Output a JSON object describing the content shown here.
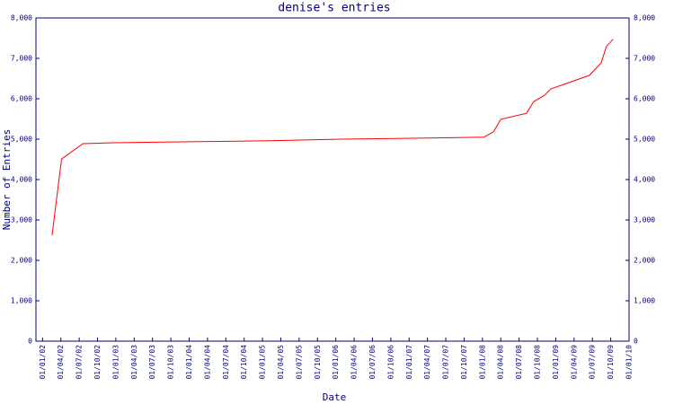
{
  "chart_data": {
    "type": "line",
    "title": "denise's entries",
    "x_label": "Date",
    "y_label": "Number of Entries",
    "series": [
      {
        "name": "entries",
        "color": "#ff0000",
        "x": [
          2002.13,
          2002.26,
          2002.55,
          2002.96,
          2003.75,
          2005.1,
          2006.09,
          2006.94,
          2007.66,
          2008.02,
          2008.15,
          2008.25,
          2008.6,
          2008.7,
          2008.85,
          2008.93,
          2009.46,
          2009.62,
          2009.69,
          2009.78
        ],
        "values": [
          2620,
          4510,
          4890,
          4910,
          4930,
          4960,
          5000,
          5020,
          5040,
          5050,
          5180,
          5490,
          5640,
          5930,
          6090,
          6240,
          6580,
          6890,
          7290,
          7470
        ]
      }
    ],
    "xlim": [
      2001.91,
      2010.0
    ],
    "xticks": [
      {
        "value": 2002.0,
        "label": "01/01/02"
      },
      {
        "value": 2002.25,
        "label": "01/04/02"
      },
      {
        "value": 2002.5,
        "label": "01/07/02"
      },
      {
        "value": 2002.75,
        "label": "01/10/02"
      },
      {
        "value": 2003.0,
        "label": "01/01/03"
      },
      {
        "value": 2003.25,
        "label": "01/04/03"
      },
      {
        "value": 2003.5,
        "label": "01/07/03"
      },
      {
        "value": 2003.75,
        "label": "01/10/03"
      },
      {
        "value": 2004.0,
        "label": "01/01/04"
      },
      {
        "value": 2004.25,
        "label": "01/04/04"
      },
      {
        "value": 2004.5,
        "label": "01/07/04"
      },
      {
        "value": 2004.75,
        "label": "01/10/04"
      },
      {
        "value": 2005.0,
        "label": "01/01/05"
      },
      {
        "value": 2005.25,
        "label": "01/04/05"
      },
      {
        "value": 2005.5,
        "label": "01/07/05"
      },
      {
        "value": 2005.75,
        "label": "01/10/05"
      },
      {
        "value": 2006.0,
        "label": "01/01/06"
      },
      {
        "value": 2006.25,
        "label": "01/04/06"
      },
      {
        "value": 2006.5,
        "label": "01/07/06"
      },
      {
        "value": 2006.75,
        "label": "01/10/06"
      },
      {
        "value": 2007.0,
        "label": "01/01/07"
      },
      {
        "value": 2007.25,
        "label": "01/04/07"
      },
      {
        "value": 2007.5,
        "label": "01/07/07"
      },
      {
        "value": 2007.75,
        "label": "01/10/07"
      },
      {
        "value": 2008.0,
        "label": "01/01/08"
      },
      {
        "value": 2008.25,
        "label": "01/04/08"
      },
      {
        "value": 2008.5,
        "label": "01/07/08"
      },
      {
        "value": 2008.75,
        "label": "01/10/08"
      },
      {
        "value": 2009.0,
        "label": "01/01/09"
      },
      {
        "value": 2009.25,
        "label": "01/04/09"
      },
      {
        "value": 2009.5,
        "label": "01/07/09"
      },
      {
        "value": 2009.75,
        "label": "01/10/09"
      },
      {
        "value": 2010.0,
        "label": "01/01/10"
      }
    ],
    "ylim": [
      0,
      8000
    ],
    "yticks": [
      0,
      {
        "value": 1000,
        "label": "1,000"
      },
      {
        "value": 2000,
        "label": "2,000"
      },
      {
        "value": 3000,
        "label": "3,000"
      },
      {
        "value": 4000,
        "label": "4,000"
      },
      {
        "value": 5000,
        "label": "5,000"
      },
      {
        "value": 6000,
        "label": "6,000"
      },
      {
        "value": 7000,
        "label": "7,000"
      },
      {
        "value": 8000,
        "label": "8,000"
      }
    ],
    "y2lim": [
      0,
      8000
    ],
    "y2ticks": [
      0,
      {
        "value": 1000,
        "label": "1,000"
      },
      {
        "value": 2000,
        "label": "2,000"
      },
      {
        "value": 3000,
        "label": "3,000"
      },
      {
        "value": 4000,
        "label": "4,000"
      },
      {
        "value": 5000,
        "label": "5,000"
      },
      {
        "value": 6000,
        "label": "6,000"
      },
      {
        "value": 7000,
        "label": "7,000"
      },
      {
        "value": 8000,
        "label": "8,000"
      }
    ],
    "grid": false
  }
}
